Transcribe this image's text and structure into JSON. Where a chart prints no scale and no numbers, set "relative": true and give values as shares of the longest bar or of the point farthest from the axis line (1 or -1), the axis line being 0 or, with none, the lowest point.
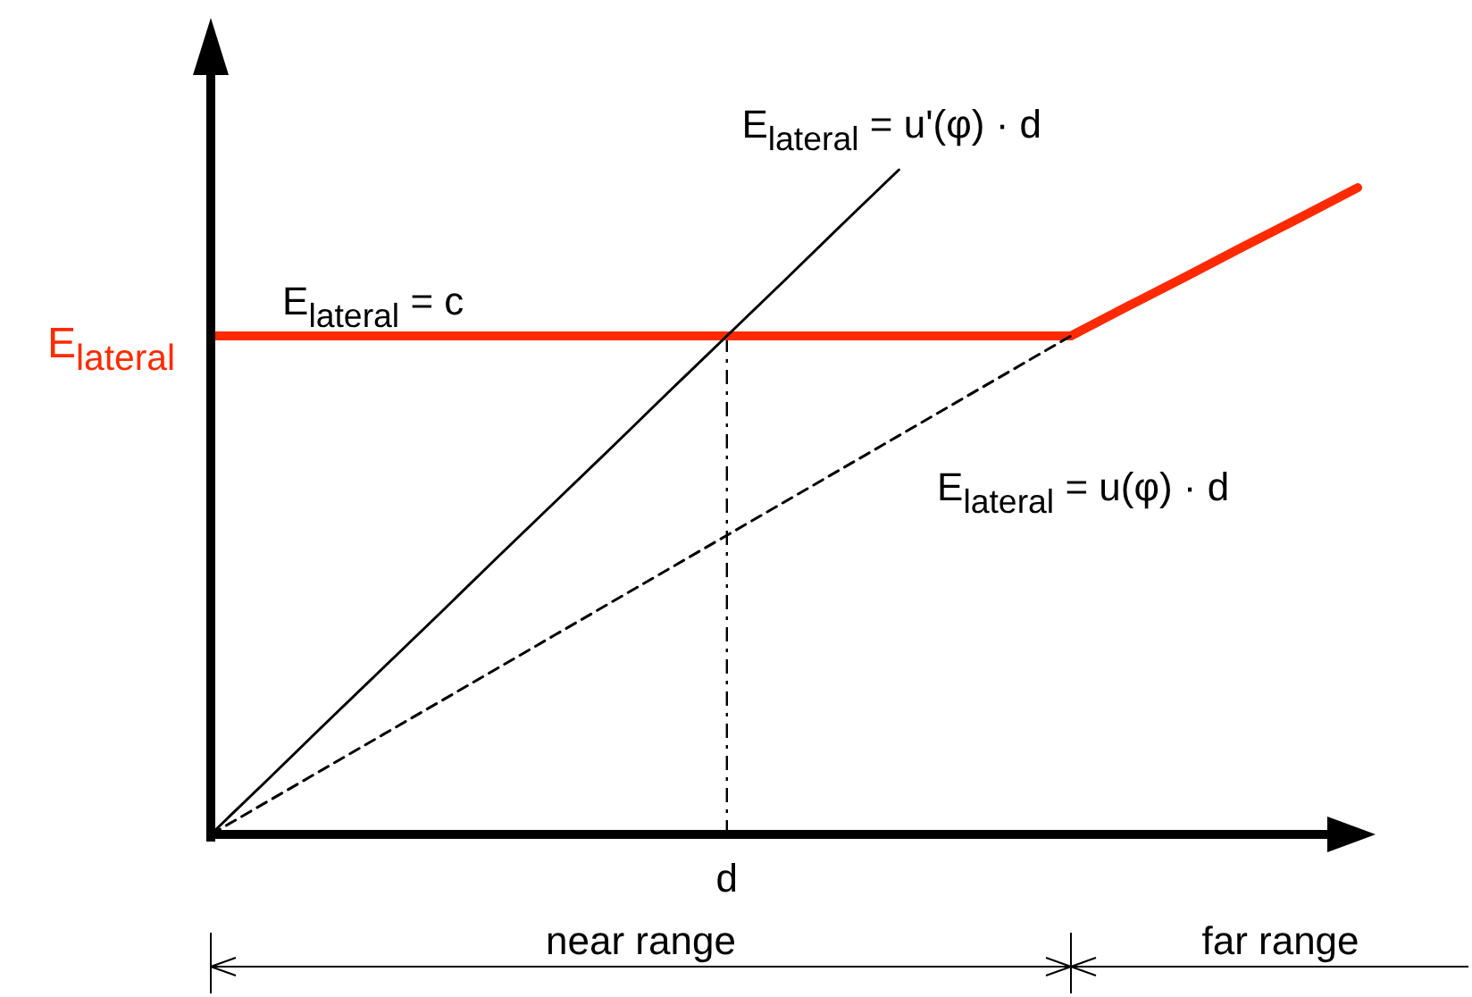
{
  "chart_data": {
    "type": "line",
    "relative": true,
    "categories": [
      null,
      null,
      null,
      null,
      null,
      null,
      null,
      null,
      null,
      null,
      null,
      null,
      null,
      null,
      null,
      null,
      null,
      null,
      null,
      null,
      null
    ],
    "annotations": [
      "near range",
      "far range",
      "E$_{lateral}$"
    ],
    "ref_lines": [
      {
        "axis": "x",
        "label": "d",
        "line_style": "dotted",
        "color": "#000000"
      }
    ],
    "series": [
      {
        "name": "E$_{lateral}$ = c",
        "color": "#ff2a00",
        "values": [
          0.75,
          0.75,
          0.75,
          0.75,
          0.75,
          0.75,
          0.75,
          0.75,
          0.75,
          0.75,
          0.75,
          0.75,
          0.75,
          0.75,
          0.75,
          0.75,
          0.795,
          0.839,
          0.884,
          0.928,
          0.973
        ],
        "line_style": "solid"
      },
      {
        "name": "E$_{lateral}$ = u'(φ) · d",
        "color": "#000000",
        "values": [
          0,
          0.083,
          0.167,
          0.25,
          0.333,
          0.417,
          0.5,
          0.583,
          0.667,
          0.75,
          0.833,
          0.917,
          1,
          null,
          null,
          null,
          null,
          null,
          null,
          null,
          null
        ],
        "line_style": "solid"
      },
      {
        "name": "E$_{lateral}$ = u(φ) · d",
        "color": "#000000",
        "values": [
          0,
          0.05,
          0.1,
          0.15,
          0.2,
          0.25,
          0.3,
          0.35,
          0.4,
          0.45,
          0.5,
          0.55,
          0.6,
          0.65,
          0.7,
          0.75,
          null,
          null,
          null,
          null,
          null
        ],
        "line_style": "dashed"
      }
    ]
  }
}
